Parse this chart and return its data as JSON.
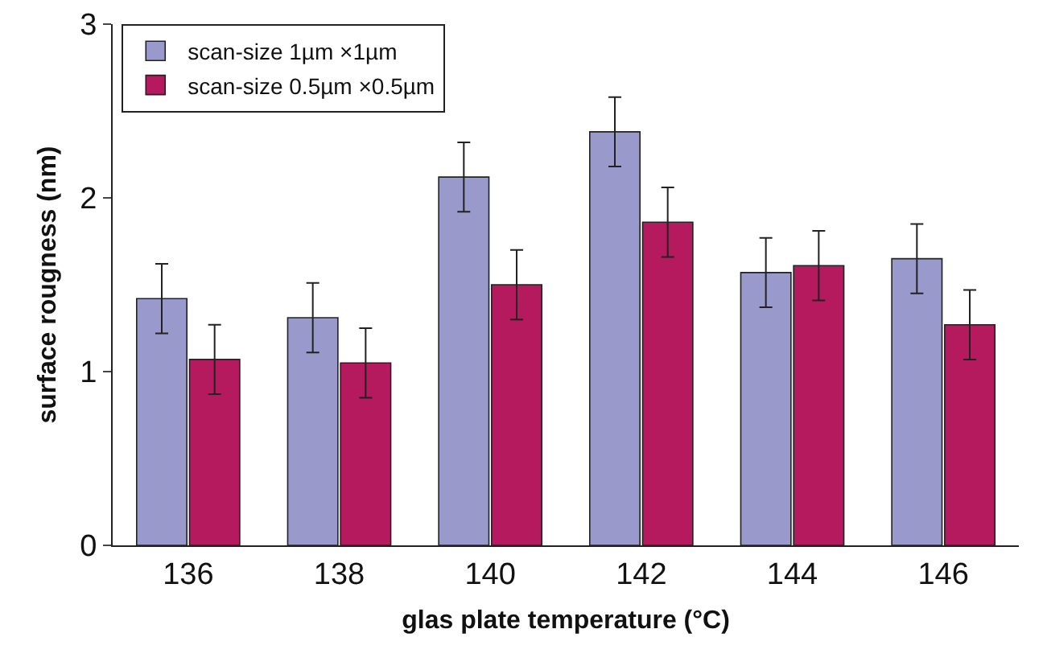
{
  "chart_data": {
    "type": "bar",
    "xlabel": "glas plate temperature (°C)",
    "ylabel": "surface rougness (nm)",
    "categories": [
      "136",
      "138",
      "140",
      "142",
      "144",
      "146"
    ],
    "series": [
      {
        "name": "scan-size 1µm ×1µm",
        "color": "#9999cc",
        "values": [
          1.42,
          1.31,
          2.12,
          2.38,
          1.57,
          1.65
        ],
        "errors": [
          0.2,
          0.2,
          0.2,
          0.2,
          0.2,
          0.2
        ]
      },
      {
        "name": "scan-size 0.5µm ×0.5µm",
        "color": "#b5195e",
        "values": [
          1.07,
          1.05,
          1.5,
          1.86,
          1.61,
          1.27
        ],
        "errors": [
          0.2,
          0.2,
          0.2,
          0.2,
          0.2,
          0.2
        ]
      }
    ],
    "ylim": [
      0,
      3
    ],
    "yticks": [
      0,
      1,
      2,
      3
    ],
    "grid": false,
    "legend": "top left"
  }
}
